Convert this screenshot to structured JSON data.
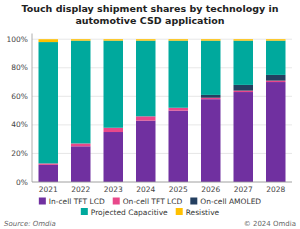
{
  "chart_data": {
    "type": "bar",
    "stacked": true,
    "title": "Touch display shipment shares by technology in\nautomotive CSD application",
    "categories": [
      "2021",
      "2022",
      "2023",
      "2024",
      "2025",
      "2026",
      "2027",
      "2028"
    ],
    "series": [
      {
        "name": "In-cell TFT LCD",
        "color": "#7030A0",
        "values": [
          12,
          25,
          35,
          43,
          50,
          58,
          63,
          70
        ]
      },
      {
        "name": "On-cell TFT LCD",
        "color": "#E8488A",
        "values": [
          1,
          2,
          3,
          3,
          2,
          1,
          1,
          1
        ]
      },
      {
        "name": "On-cell AMOLED",
        "color": "#243F60",
        "values": [
          0,
          0,
          0,
          0,
          0,
          2,
          4,
          4
        ]
      },
      {
        "name": "Projected Capacitive",
        "color": "#00A99D",
        "values": [
          85,
          72,
          61,
          53,
          47,
          38,
          31,
          24
        ]
      },
      {
        "name": "Resistive",
        "color": "#FFC000",
        "values": [
          2,
          1,
          1,
          1,
          1,
          1,
          1,
          1
        ]
      }
    ],
    "ylim": [
      0,
      104
    ],
    "yticks": [
      {
        "value": 0,
        "label": "0%"
      },
      {
        "value": 20,
        "label": "20%"
      },
      {
        "value": 40,
        "label": "40%"
      },
      {
        "value": 60,
        "label": "60%"
      },
      {
        "value": 80,
        "label": "80%"
      },
      {
        "value": 100,
        "label": "100%"
      }
    ],
    "grid": true,
    "legend": "bottom",
    "annotations": [
      "Source: Omdia",
      "© 2024 Omdia"
    ]
  }
}
